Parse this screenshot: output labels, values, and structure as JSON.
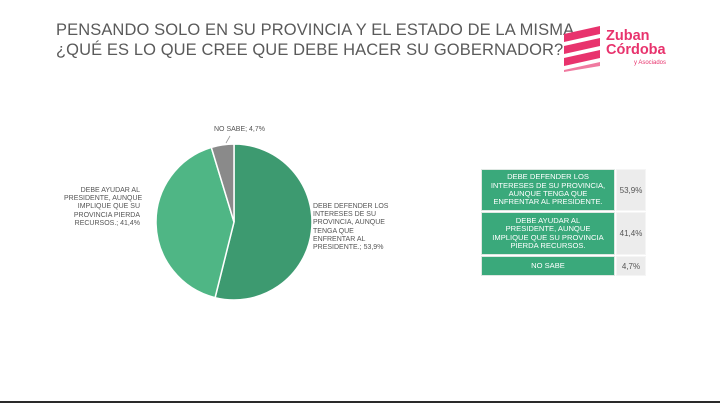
{
  "title_lines": [
    "PENSANDO SOLO EN SU PROVINCIA Y EL ESTADO DE LA MISMA,",
    "¿QUÉ ES LO QUE CREE QUE DEBE HACER SU GOBERNADOR?"
  ],
  "logo": {
    "line1": "Zuban",
    "line2": "Córdoba",
    "line3": "y Asociados",
    "color": "#e8336d"
  },
  "chart_data": {
    "type": "pie",
    "title": "",
    "slices": [
      {
        "label": "DEBE DEFENDER LOS INTERESES DE SU PROVINCIA, AUNQUE TENGA QUE ENFRENTAR AL PRESIDENTE.",
        "value": 53.9,
        "color": "#3d9a70"
      },
      {
        "label": "DEBE AYUDAR AL PRESIDENTE, AUNQUE IMPLIQUE QUE SU PROVINCIA PIERDA RECURSOS.",
        "value": 41.4,
        "color": "#4fb685"
      },
      {
        "label": "NO SABE",
        "value": 4.7,
        "color": "#8a8a8a"
      }
    ],
    "data_labels": {
      "defender": [
        "DEBE DEFENDER LOS",
        "INTERESES DE SU",
        "PROVINCIA, AUNQUE",
        "TENGA QUE",
        "ENFRENTAR AL",
        "PRESIDENTE.; 53,9%"
      ],
      "ayudar": [
        "DEBE AYUDAR AL",
        "PRESIDENTE, AUNQUE",
        "IMPLIQUE QUE SU",
        "PROVINCIA PIERDA",
        "RECURSOS.; 41,4%"
      ],
      "nosabe": [
        "NO SABE; 4,7%"
      ]
    }
  },
  "table": {
    "rows": [
      {
        "label_lines": [
          "DEBE DEFENDER LOS",
          "INTERESES DE SU PROVINCIA,",
          "AUNQUE TENGA QUE",
          "ENFRENTAR AL PRESIDENTE."
        ],
        "value": "53,9%"
      },
      {
        "label_lines": [
          "DEBE AYUDAR AL",
          "PRESIDENTE, AUNQUE",
          "IMPLIQUE QUE SU PROVINCIA",
          "PIERDA RECURSOS."
        ],
        "value": "41,4%"
      },
      {
        "label_lines": [
          "NO SABE"
        ],
        "value": "4,7%"
      }
    ]
  }
}
